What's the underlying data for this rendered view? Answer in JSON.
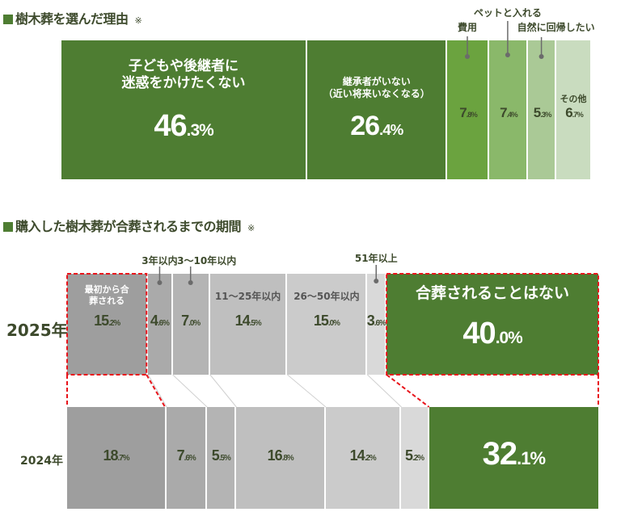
{
  "section1": {
    "title": "樹木葬を選んだ理由",
    "note": "※",
    "chart_data": {
      "type": "bar",
      "orientation": "stacked-horizontal-100",
      "categories": [
        "子どもや後継者に迷惑をかけたくない",
        "継承者がいない（近い将来いなくなる）",
        "費用",
        "ペットと入れる",
        "自然に回帰したい",
        "その他"
      ],
      "values": [
        46.3,
        26.4,
        7.8,
        7.4,
        5.3,
        6.7
      ],
      "unit": "%",
      "colors": [
        "#4e7d32",
        "#4e7d32",
        "#6ba33f",
        "#8ab86a",
        "#aac996",
        "#c9dcbf"
      ]
    }
  },
  "section2": {
    "title": "購入した樹木葬が合葬されるまでの期間",
    "note": "※",
    "chart_data": {
      "type": "bar",
      "orientation": "stacked-horizontal-100",
      "categories": [
        "最初から合葬される",
        "3年以内",
        "3〜10年以内",
        "11〜25年以内",
        "26〜50年以内",
        "51年以上",
        "合葬されることはない"
      ],
      "series": [
        {
          "name": "2025年",
          "values": [
            15.2,
            4.6,
            7.0,
            14.5,
            15.0,
            3.6,
            40.0
          ]
        },
        {
          "name": "2024年",
          "values": [
            18.7,
            7.6,
            5.5,
            16.8,
            14.2,
            5.2,
            32.1
          ]
        }
      ],
      "unit": "%",
      "colors": [
        "#9e9e9e",
        "#aaaaaa",
        "#b4b4b4",
        "#bfbfbf",
        "#cbcbcb",
        "#d9d9d9",
        "#4e7d32"
      ],
      "highlight_color": "#e8141b"
    }
  }
}
